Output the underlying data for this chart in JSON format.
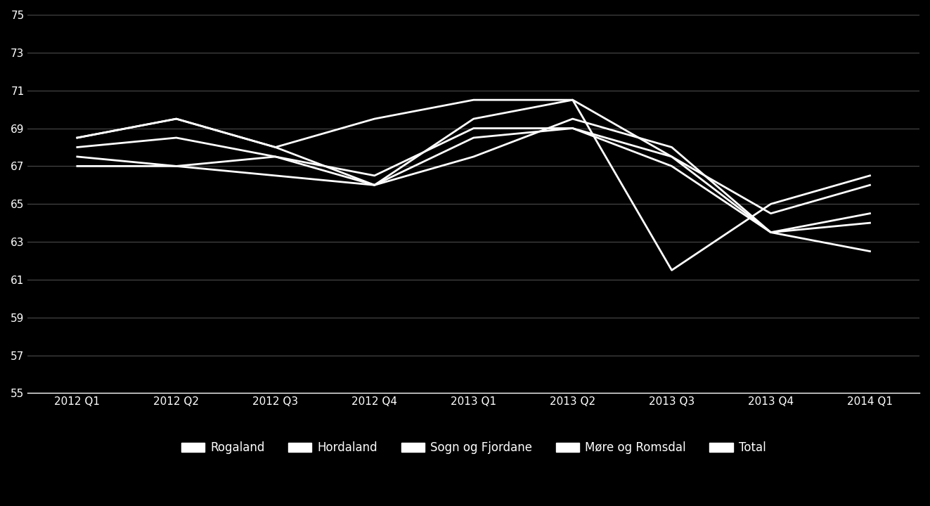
{
  "x_labels": [
    "2012 Q1",
    "2012 Q2",
    "2012 Q3",
    "2012 Q4",
    "2013 Q1",
    "2013 Q2",
    "2013 Q3",
    "2013 Q4",
    "2014 Q1"
  ],
  "series": {
    "Rogaland": [
      68.5,
      69.5,
      68.0,
      66.0,
      69.5,
      70.5,
      67.5,
      64.5,
      66.0
    ],
    "Hordaland": [
      68.0,
      68.5,
      67.5,
      66.5,
      69.0,
      69.0,
      67.5,
      63.5,
      64.5
    ],
    "Sogn og Fjordane": [
      67.0,
      67.0,
      66.5,
      66.0,
      67.5,
      69.5,
      68.0,
      63.5,
      64.0
    ],
    "Møre og Romsdal": [
      68.5,
      69.5,
      68.0,
      69.5,
      70.5,
      70.5,
      61.5,
      65.0,
      66.5
    ],
    "Total": [
      67.5,
      67.0,
      67.5,
      66.0,
      68.5,
      69.0,
      67.0,
      63.5,
      62.5
    ]
  },
  "ylim": [
    55,
    75
  ],
  "yticks": [
    55,
    57,
    59,
    61,
    63,
    65,
    67,
    69,
    71,
    73,
    75
  ],
  "background_color": "#000000",
  "plot_bg_color": "#000000",
  "line_color": "#ffffff",
  "text_color": "#ffffff",
  "grid_color": "#4a4a4a",
  "legend_labels": [
    "Rogaland",
    "Hordaland",
    "Sogn og Fjordane",
    "Møre og Romsdal",
    "Total"
  ]
}
